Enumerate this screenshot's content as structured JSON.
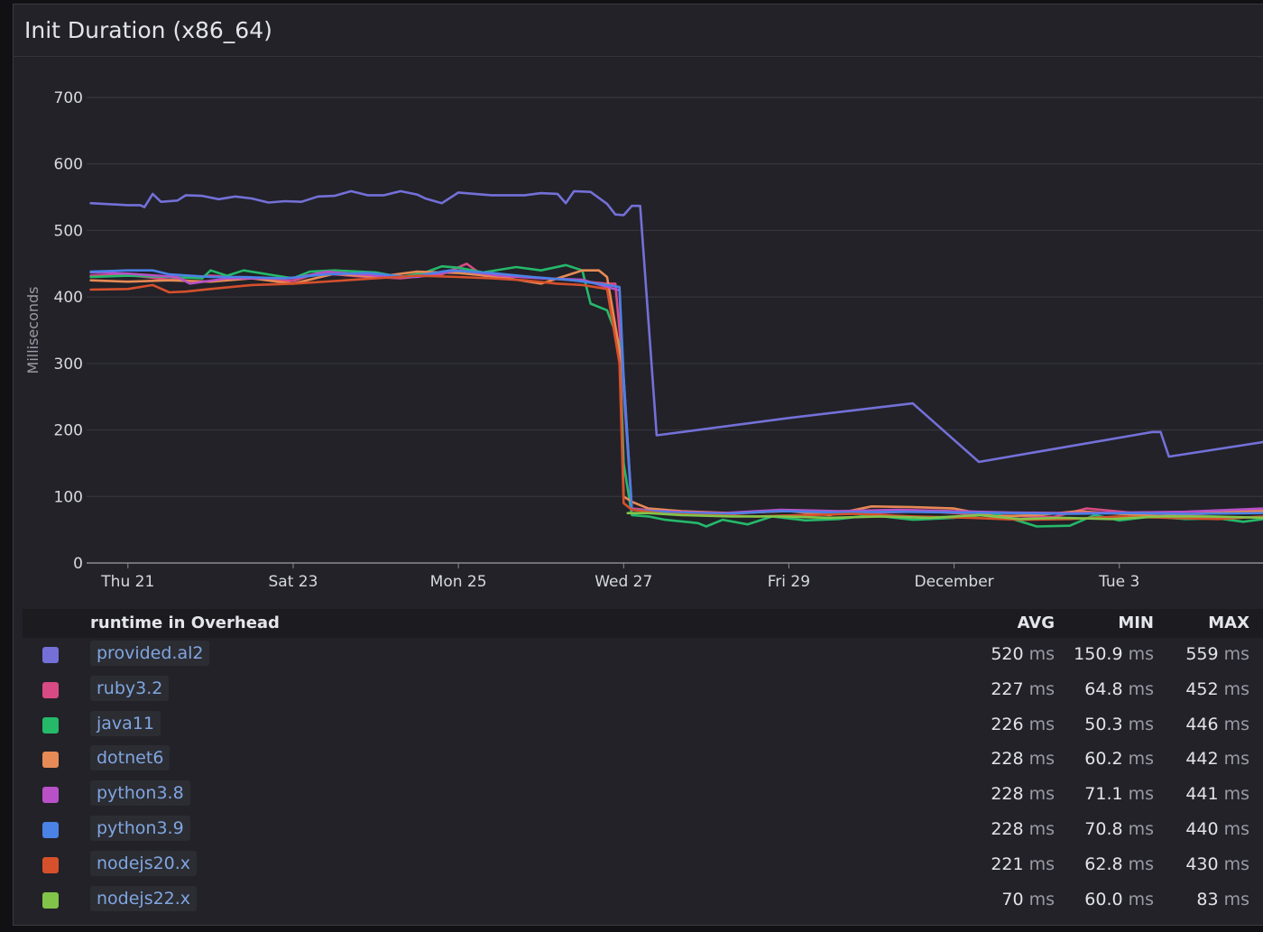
{
  "panel": {
    "title": "Init Duration (x86_64)"
  },
  "chart_data": {
    "type": "line",
    "title": "Init Duration (x86_64)",
    "ylabel": "Milliseconds",
    "ylim": [
      0,
      700
    ],
    "yticks": [
      0,
      100,
      200,
      300,
      400,
      500,
      600,
      700
    ],
    "xlim_days": [
      20.5,
      34.75
    ],
    "xticks": [
      {
        "label": "Thu 21",
        "day": 21
      },
      {
        "label": "Sat 23",
        "day": 23
      },
      {
        "label": "Mon 25",
        "day": 25
      },
      {
        "label": "Wed 27",
        "day": 27
      },
      {
        "label": "Fri 29",
        "day": 29
      },
      {
        "label": "December",
        "day": 31
      },
      {
        "label": "Tue 3",
        "day": 33
      }
    ],
    "series": [
      {
        "name": "provided.al2",
        "color": "#7470d8",
        "points": [
          [
            20.55,
            541
          ],
          [
            21.0,
            538
          ],
          [
            21.15,
            538
          ],
          [
            21.2,
            535
          ],
          [
            21.3,
            555
          ],
          [
            21.4,
            543
          ],
          [
            21.6,
            545
          ],
          [
            21.7,
            553
          ],
          [
            21.9,
            552
          ],
          [
            22.1,
            547
          ],
          [
            22.3,
            551
          ],
          [
            22.5,
            548
          ],
          [
            22.7,
            542
          ],
          [
            22.9,
            544
          ],
          [
            23.1,
            543
          ],
          [
            23.3,
            551
          ],
          [
            23.5,
            552
          ],
          [
            23.7,
            559
          ],
          [
            23.9,
            553
          ],
          [
            24.1,
            553
          ],
          [
            24.3,
            559
          ],
          [
            24.5,
            554
          ],
          [
            24.6,
            548
          ],
          [
            24.8,
            541
          ],
          [
            25.0,
            557
          ],
          [
            25.2,
            555
          ],
          [
            25.4,
            553
          ],
          [
            25.6,
            553
          ],
          [
            25.8,
            553
          ],
          [
            26.0,
            556
          ],
          [
            26.2,
            555
          ],
          [
            26.3,
            541
          ],
          [
            26.4,
            559
          ],
          [
            26.6,
            558
          ],
          [
            26.8,
            540
          ],
          [
            26.9,
            524
          ],
          [
            27.0,
            523
          ],
          [
            27.1,
            537
          ],
          [
            27.2,
            537
          ],
          [
            27.4,
            192
          ],
          [
            29.0,
            218
          ],
          [
            30.5,
            240
          ],
          [
            31.3,
            152
          ],
          [
            33.4,
            197
          ],
          [
            33.5,
            197
          ],
          [
            33.6,
            160
          ],
          [
            34.75,
            182
          ]
        ]
      },
      {
        "name": "ruby3.2",
        "color": "#d84a84",
        "points": [
          [
            20.55,
            432
          ],
          [
            21.0,
            433
          ],
          [
            21.5,
            426
          ],
          [
            22.0,
            432
          ],
          [
            22.6,
            427
          ],
          [
            23.0,
            424
          ],
          [
            23.3,
            436
          ],
          [
            23.8,
            431
          ],
          [
            24.3,
            428
          ],
          [
            24.8,
            434
          ],
          [
            25.1,
            450
          ],
          [
            25.3,
            432
          ],
          [
            25.8,
            430
          ],
          [
            26.3,
            426
          ],
          [
            26.8,
            420
          ],
          [
            26.9,
            420
          ],
          [
            27.0,
            280
          ],
          [
            27.1,
            82
          ],
          [
            27.6,
            76
          ],
          [
            28.3,
            74
          ],
          [
            29.0,
            79
          ],
          [
            29.8,
            74
          ],
          [
            30.6,
            78
          ],
          [
            31.4,
            72
          ],
          [
            32.2,
            69
          ],
          [
            32.6,
            82
          ],
          [
            33.2,
            75
          ],
          [
            33.8,
            72
          ],
          [
            34.75,
            80
          ]
        ]
      },
      {
        "name": "java11",
        "color": "#25b96a",
        "points": [
          [
            20.55,
            430
          ],
          [
            21.0,
            432
          ],
          [
            21.5,
            430
          ],
          [
            21.9,
            428
          ],
          [
            22.0,
            440
          ],
          [
            22.2,
            432
          ],
          [
            22.4,
            440
          ],
          [
            22.8,
            432
          ],
          [
            23.0,
            428
          ],
          [
            23.2,
            438
          ],
          [
            23.5,
            440
          ],
          [
            24.0,
            437
          ],
          [
            24.3,
            430
          ],
          [
            24.6,
            437
          ],
          [
            24.8,
            446
          ],
          [
            25.0,
            444
          ],
          [
            25.3,
            437
          ],
          [
            25.7,
            445
          ],
          [
            26.0,
            440
          ],
          [
            26.3,
            448
          ],
          [
            26.5,
            440
          ],
          [
            26.6,
            390
          ],
          [
            26.8,
            380
          ],
          [
            26.95,
            330
          ],
          [
            27.0,
            150
          ],
          [
            27.1,
            72
          ],
          [
            27.3,
            70
          ],
          [
            27.5,
            65
          ],
          [
            27.9,
            60
          ],
          [
            28.0,
            55
          ],
          [
            28.2,
            65
          ],
          [
            28.5,
            58
          ],
          [
            28.8,
            70
          ],
          [
            29.2,
            64
          ],
          [
            29.6,
            66
          ],
          [
            30.0,
            72
          ],
          [
            30.5,
            65
          ],
          [
            31.0,
            68
          ],
          [
            31.5,
            74
          ],
          [
            32.0,
            55
          ],
          [
            32.4,
            56
          ],
          [
            32.7,
            72
          ],
          [
            33.0,
            64
          ],
          [
            33.4,
            70
          ],
          [
            33.8,
            66
          ],
          [
            34.2,
            67
          ],
          [
            34.5,
            62
          ],
          [
            34.75,
            66
          ]
        ]
      },
      {
        "name": "dotnet6",
        "color": "#e88a55",
        "points": [
          [
            20.55,
            425
          ],
          [
            21.0,
            423
          ],
          [
            21.5,
            425
          ],
          [
            22.0,
            423
          ],
          [
            22.5,
            428
          ],
          [
            23.0,
            420
          ],
          [
            23.5,
            435
          ],
          [
            24.0,
            430
          ],
          [
            24.5,
            438
          ],
          [
            25.0,
            436
          ],
          [
            25.5,
            430
          ],
          [
            26.0,
            420
          ],
          [
            26.3,
            432
          ],
          [
            26.5,
            440
          ],
          [
            26.7,
            440
          ],
          [
            26.8,
            430
          ],
          [
            26.95,
            320
          ],
          [
            27.0,
            100
          ],
          [
            27.1,
            92
          ],
          [
            27.3,
            82
          ],
          [
            27.7,
            78
          ],
          [
            28.3,
            75
          ],
          [
            29.0,
            78
          ],
          [
            29.5,
            72
          ],
          [
            30.0,
            85
          ],
          [
            30.5,
            84
          ],
          [
            31.0,
            82
          ],
          [
            31.5,
            70
          ],
          [
            32.0,
            72
          ],
          [
            32.5,
            78
          ],
          [
            33.0,
            74
          ],
          [
            33.5,
            70
          ],
          [
            34.0,
            75
          ],
          [
            34.75,
            78
          ]
        ]
      },
      {
        "name": "python3.8",
        "color": "#b850c8",
        "points": [
          [
            20.55,
            437
          ],
          [
            21.0,
            435
          ],
          [
            21.6,
            430
          ],
          [
            21.75,
            420
          ],
          [
            22.2,
            428
          ],
          [
            22.6,
            428
          ],
          [
            23.0,
            428
          ],
          [
            23.4,
            438
          ],
          [
            24.0,
            432
          ],
          [
            24.5,
            430
          ],
          [
            25.0,
            440
          ],
          [
            25.5,
            432
          ],
          [
            26.0,
            428
          ],
          [
            26.5,
            426
          ],
          [
            26.8,
            415
          ],
          [
            26.95,
            410
          ],
          [
            27.0,
            260
          ],
          [
            27.1,
            80
          ],
          [
            27.6,
            77
          ],
          [
            28.2,
            75
          ],
          [
            28.9,
            80
          ],
          [
            29.6,
            78
          ],
          [
            30.3,
            80
          ],
          [
            31.0,
            78
          ],
          [
            31.7,
            76
          ],
          [
            32.4,
            75
          ],
          [
            33.1,
            76
          ],
          [
            33.8,
            77
          ],
          [
            34.75,
            82
          ]
        ]
      },
      {
        "name": "python3.9",
        "color": "#4a82e6",
        "points": [
          [
            20.55,
            438
          ],
          [
            21.0,
            440
          ],
          [
            21.3,
            440
          ],
          [
            21.5,
            434
          ],
          [
            22.0,
            430
          ],
          [
            22.4,
            430
          ],
          [
            22.9,
            428
          ],
          [
            23.4,
            434
          ],
          [
            23.9,
            436
          ],
          [
            24.4,
            430
          ],
          [
            24.9,
            440
          ],
          [
            25.4,
            436
          ],
          [
            25.9,
            430
          ],
          [
            26.4,
            425
          ],
          [
            26.8,
            418
          ],
          [
            26.95,
            415
          ],
          [
            27.0,
            280
          ],
          [
            27.1,
            80
          ],
          [
            27.6,
            76
          ],
          [
            28.2,
            74
          ],
          [
            28.9,
            78
          ],
          [
            29.6,
            76
          ],
          [
            30.3,
            77
          ],
          [
            31.0,
            76
          ],
          [
            31.7,
            75
          ],
          [
            32.4,
            74
          ],
          [
            33.1,
            75
          ],
          [
            33.8,
            74
          ],
          [
            34.75,
            75
          ]
        ]
      },
      {
        "name": "nodejs20.x",
        "color": "#d6502c",
        "points": [
          [
            20.55,
            411
          ],
          [
            21.0,
            412
          ],
          [
            21.3,
            418
          ],
          [
            21.5,
            407
          ],
          [
            21.7,
            408
          ],
          [
            22.0,
            412
          ],
          [
            22.5,
            418
          ],
          [
            23.0,
            420
          ],
          [
            23.5,
            424
          ],
          [
            24.0,
            428
          ],
          [
            24.5,
            432
          ],
          [
            25.0,
            430
          ],
          [
            25.4,
            428
          ],
          [
            25.8,
            425
          ],
          [
            26.2,
            420
          ],
          [
            26.5,
            418
          ],
          [
            26.8,
            412
          ],
          [
            26.95,
            300
          ],
          [
            27.0,
            90
          ],
          [
            27.1,
            80
          ],
          [
            27.5,
            74
          ],
          [
            28.0,
            72
          ],
          [
            28.6,
            70
          ],
          [
            29.2,
            72
          ],
          [
            29.8,
            74
          ],
          [
            30.5,
            70
          ],
          [
            31.2,
            68
          ],
          [
            31.8,
            65
          ],
          [
            32.4,
            66
          ],
          [
            33.0,
            70
          ],
          [
            33.6,
            68
          ],
          [
            34.2,
            66
          ],
          [
            34.75,
            70
          ]
        ]
      },
      {
        "name": "nodejs22.x",
        "color": "#82c44a",
        "points": [
          [
            27.05,
            75
          ],
          [
            27.3,
            75
          ],
          [
            27.7,
            72
          ],
          [
            28.3,
            70
          ],
          [
            28.9,
            70
          ],
          [
            29.5,
            68
          ],
          [
            30.1,
            70
          ],
          [
            30.7,
            68
          ],
          [
            31.3,
            72
          ],
          [
            31.8,
            66
          ],
          [
            32.3,
            68
          ],
          [
            32.9,
            66
          ],
          [
            33.5,
            70
          ],
          [
            34.1,
            70
          ],
          [
            34.75,
            68
          ]
        ]
      }
    ]
  },
  "legend": {
    "header": {
      "name": "runtime in Overhead",
      "avg": "AVG",
      "min": "MIN",
      "max": "MAX"
    },
    "unit": "ms",
    "rows": [
      {
        "name": "provided.al2",
        "color": "#7470d8",
        "avg": "520",
        "min": "150.9",
        "max": "559"
      },
      {
        "name": "ruby3.2",
        "color": "#d84a84",
        "avg": "227",
        "min": "64.8",
        "max": "452"
      },
      {
        "name": "java11",
        "color": "#25b96a",
        "avg": "226",
        "min": "50.3",
        "max": "446"
      },
      {
        "name": "dotnet6",
        "color": "#e88a55",
        "avg": "228",
        "min": "60.2",
        "max": "442"
      },
      {
        "name": "python3.8",
        "color": "#b850c8",
        "avg": "228",
        "min": "71.1",
        "max": "441"
      },
      {
        "name": "python3.9",
        "color": "#4a82e6",
        "avg": "228",
        "min": "70.8",
        "max": "440"
      },
      {
        "name": "nodejs20.x",
        "color": "#d6502c",
        "avg": "221",
        "min": "62.8",
        "max": "430"
      },
      {
        "name": "nodejs22.x",
        "color": "#82c44a",
        "avg": "70",
        "min": "60.0",
        "max": "83"
      }
    ]
  }
}
